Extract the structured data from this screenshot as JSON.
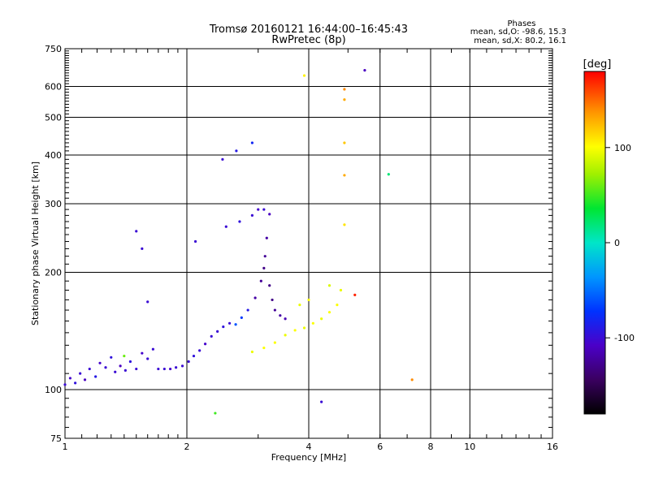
{
  "chart_data": {
    "type": "scatter",
    "title": "Tromsø 20160121 16:44:00–16:45:43",
    "subtitle": "RwPretec (8p)",
    "xlabel": "Frequency [MHz]",
    "ylabel": "Stationary phase Virtual Height [km]",
    "x_scale": "log",
    "y_scale": "log",
    "xlim": [
      1,
      16
    ],
    "ylim": [
      75,
      750
    ],
    "x_ticks": [
      {
        "value": 1,
        "label": "1"
      },
      {
        "value": 2,
        "label": "2"
      },
      {
        "value": 4,
        "label": "4"
      },
      {
        "value": 6,
        "label": "6"
      },
      {
        "value": 8,
        "label": "8"
      },
      {
        "value": 10,
        "label": "10"
      },
      {
        "value": 16,
        "label": "16"
      }
    ],
    "y_ticks": [
      {
        "value": 75,
        "label": "75"
      },
      {
        "value": 100,
        "label": "100"
      },
      {
        "value": 200,
        "label": "200"
      },
      {
        "value": 300,
        "label": "300"
      },
      {
        "value": 400,
        "label": "400"
      },
      {
        "value": 500,
        "label": "500"
      },
      {
        "value": 600,
        "label": "600"
      },
      {
        "value": 750,
        "label": "750"
      }
    ],
    "grid_x": [
      1,
      2,
      4,
      6,
      8,
      10
    ],
    "grid_y": [
      100,
      200,
      300,
      400,
      500,
      600
    ],
    "grid": true,
    "stats": {
      "heading": "Phases",
      "line_o": "mean, sd,O: -98.6, 15.3",
      "line_x": "mean, sd,X:  80.2, 16.1"
    },
    "colorbar": {
      "label": "[deg]",
      "min": -180,
      "max": 180,
      "ticks": [
        {
          "value": 100,
          "label": "100"
        },
        {
          "value": 0,
          "label": "0"
        },
        {
          "value": -100,
          "label": "-100"
        }
      ]
    },
    "points": [
      {
        "x": 1.0,
        "y": 103,
        "phase": -100
      },
      {
        "x": 1.03,
        "y": 107,
        "phase": -105
      },
      {
        "x": 1.06,
        "y": 104,
        "phase": -95
      },
      {
        "x": 1.09,
        "y": 110,
        "phase": -100
      },
      {
        "x": 1.12,
        "y": 106,
        "phase": -110
      },
      {
        "x": 1.15,
        "y": 113,
        "phase": -100
      },
      {
        "x": 1.19,
        "y": 108,
        "phase": -90
      },
      {
        "x": 1.22,
        "y": 117,
        "phase": -105
      },
      {
        "x": 1.26,
        "y": 114,
        "phase": -100
      },
      {
        "x": 1.3,
        "y": 121,
        "phase": -95
      },
      {
        "x": 1.33,
        "y": 111,
        "phase": -100
      },
      {
        "x": 1.37,
        "y": 115,
        "phase": -110
      },
      {
        "x": 1.41,
        "y": 112,
        "phase": -100
      },
      {
        "x": 1.45,
        "y": 118,
        "phase": -95
      },
      {
        "x": 1.5,
        "y": 113,
        "phase": -100
      },
      {
        "x": 1.55,
        "y": 124,
        "phase": -105
      },
      {
        "x": 1.6,
        "y": 120,
        "phase": -100
      },
      {
        "x": 1.65,
        "y": 127,
        "phase": -100
      },
      {
        "x": 1.7,
        "y": 113,
        "phase": -100
      },
      {
        "x": 1.76,
        "y": 113,
        "phase": -100
      },
      {
        "x": 1.82,
        "y": 113,
        "phase": -105
      },
      {
        "x": 1.88,
        "y": 114,
        "phase": -100
      },
      {
        "x": 1.95,
        "y": 115,
        "phase": -100
      },
      {
        "x": 2.02,
        "y": 118,
        "phase": -100
      },
      {
        "x": 2.08,
        "y": 122,
        "phase": -95
      },
      {
        "x": 2.15,
        "y": 126,
        "phase": -100
      },
      {
        "x": 2.22,
        "y": 131,
        "phase": -105
      },
      {
        "x": 2.3,
        "y": 137,
        "phase": -100
      },
      {
        "x": 2.38,
        "y": 141,
        "phase": -100
      },
      {
        "x": 2.46,
        "y": 145,
        "phase": -95
      },
      {
        "x": 2.55,
        "y": 148,
        "phase": -100
      },
      {
        "x": 2.64,
        "y": 147,
        "phase": -60
      },
      {
        "x": 2.73,
        "y": 153,
        "phase": -70
      },
      {
        "x": 2.83,
        "y": 160,
        "phase": -90
      },
      {
        "x": 2.95,
        "y": 172,
        "phase": -120
      },
      {
        "x": 3.05,
        "y": 190,
        "phase": -125
      },
      {
        "x": 3.1,
        "y": 205,
        "phase": -130
      },
      {
        "x": 3.12,
        "y": 220,
        "phase": -125
      },
      {
        "x": 3.15,
        "y": 245,
        "phase": -120
      },
      {
        "x": 3.2,
        "y": 185,
        "phase": -130
      },
      {
        "x": 3.25,
        "y": 170,
        "phase": -130
      },
      {
        "x": 3.3,
        "y": 160,
        "phase": -125
      },
      {
        "x": 3.4,
        "y": 155,
        "phase": -120
      },
      {
        "x": 3.5,
        "y": 152,
        "phase": -115
      },
      {
        "x": 2.9,
        "y": 280,
        "phase": -100
      },
      {
        "x": 3.0,
        "y": 290,
        "phase": -105
      },
      {
        "x": 3.2,
        "y": 282,
        "phase": -110
      },
      {
        "x": 2.7,
        "y": 270,
        "phase": -95
      },
      {
        "x": 2.5,
        "y": 262,
        "phase": -100
      },
      {
        "x": 2.1,
        "y": 240,
        "phase": -100
      },
      {
        "x": 2.45,
        "y": 390,
        "phase": -100
      },
      {
        "x": 2.65,
        "y": 410,
        "phase": -90
      },
      {
        "x": 2.9,
        "y": 430,
        "phase": -80
      },
      {
        "x": 3.1,
        "y": 290,
        "phase": -100
      },
      {
        "x": 2.9,
        "y": 125,
        "phase": 95
      },
      {
        "x": 3.1,
        "y": 128,
        "phase": 100
      },
      {
        "x": 3.3,
        "y": 132,
        "phase": 100
      },
      {
        "x": 3.5,
        "y": 138,
        "phase": 95
      },
      {
        "x": 3.7,
        "y": 142,
        "phase": 100
      },
      {
        "x": 3.9,
        "y": 144,
        "phase": 95
      },
      {
        "x": 4.1,
        "y": 148,
        "phase": 100
      },
      {
        "x": 4.3,
        "y": 152,
        "phase": 95
      },
      {
        "x": 4.5,
        "y": 158,
        "phase": 100
      },
      {
        "x": 4.7,
        "y": 165,
        "phase": 100
      },
      {
        "x": 4.8,
        "y": 180,
        "phase": 95
      },
      {
        "x": 4.5,
        "y": 185,
        "phase": 90
      },
      {
        "x": 4.0,
        "y": 170,
        "phase": 100
      },
      {
        "x": 3.8,
        "y": 165,
        "phase": 95
      },
      {
        "x": 4.9,
        "y": 590,
        "phase": 140
      },
      {
        "x": 4.9,
        "y": 555,
        "phase": 130
      },
      {
        "x": 4.9,
        "y": 430,
        "phase": 120
      },
      {
        "x": 4.9,
        "y": 355,
        "phase": 130
      },
      {
        "x": 4.9,
        "y": 265,
        "phase": 110
      },
      {
        "x": 3.9,
        "y": 640,
        "phase": 105
      },
      {
        "x": 7.2,
        "y": 106,
        "phase": 140
      },
      {
        "x": 6.3,
        "y": 357,
        "phase": 20
      },
      {
        "x": 5.5,
        "y": 660,
        "phase": -110
      },
      {
        "x": 5.2,
        "y": 175,
        "phase": 170
      },
      {
        "x": 4.3,
        "y": 93,
        "phase": -100
      },
      {
        "x": 2.35,
        "y": 87,
        "phase": 50
      },
      {
        "x": 1.4,
        "y": 122,
        "phase": 60
      },
      {
        "x": 1.6,
        "y": 168,
        "phase": -100
      },
      {
        "x": 1.5,
        "y": 255,
        "phase": -100
      },
      {
        "x": 1.55,
        "y": 230,
        "phase": -100
      }
    ]
  }
}
